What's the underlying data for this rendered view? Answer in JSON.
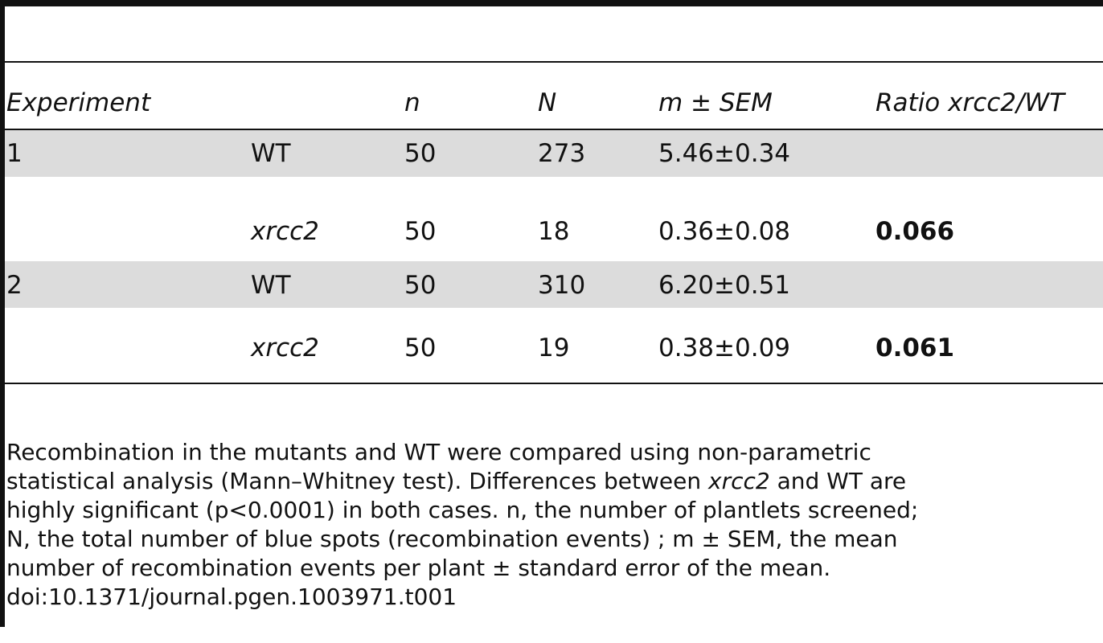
{
  "table": {
    "headers": {
      "experiment": "Experiment",
      "group": "",
      "n": "n",
      "N": "N",
      "m_sem": "m ± SEM",
      "ratio": "Ratio xrcc2/WT"
    },
    "rows": [
      {
        "experiment": "1",
        "genotype": "WT",
        "n": "50",
        "N": "273",
        "m_sem": "5.46±0.34",
        "ratio": ""
      },
      {
        "experiment": "",
        "genotype": "xrcc2",
        "n": "50",
        "N": "18",
        "m_sem": "0.36±0.08",
        "ratio": "0.066"
      },
      {
        "experiment": "2",
        "genotype": "WT",
        "n": "50",
        "N": "310",
        "m_sem": "6.20±0.51",
        "ratio": ""
      },
      {
        "experiment": "",
        "genotype": "xrcc2",
        "n": "50",
        "N": "19",
        "m_sem": "0.38±0.09",
        "ratio": "0.061"
      }
    ]
  },
  "footnote": {
    "line1": "Recombination in the mutants and WT were compared using non-parametric",
    "line2_a": "statistical analysis (Mann–Whitney test). Differences between ",
    "line2_b": "xrcc2",
    "line2_c": " and WT are",
    "line3": "highly significant (p<0.0001) in both cases. n, the number of plantlets screened;",
    "line4": "N, the total number of blue spots (recombination events) ; m ± SEM, the mean",
    "line5": "number of recombination events per plant ± standard error of the mean.",
    "doi": "doi:10.1371/journal.pgen.1003971.t001"
  }
}
